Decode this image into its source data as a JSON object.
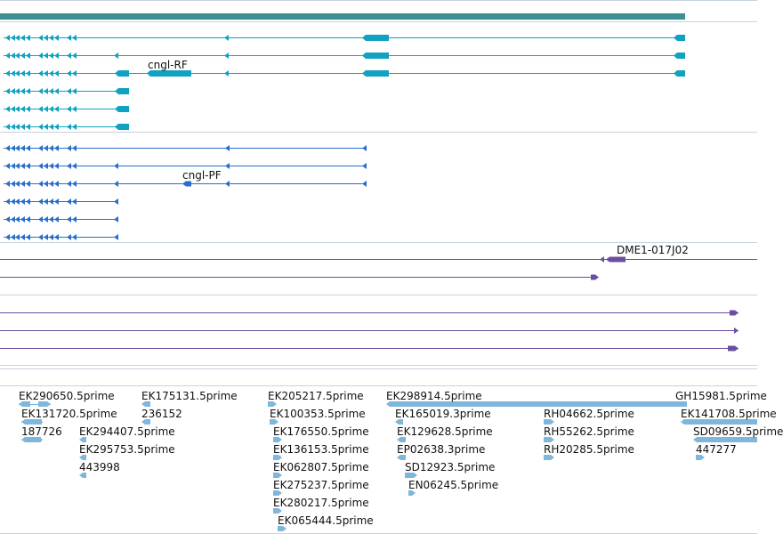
{
  "colors": {
    "gene_bar": "#3b8f95",
    "mrna_rf": "#10a2c0",
    "mrna_pf": "#2a6fc7",
    "dme_track": "#6a4fa0",
    "est": "#7fb6dc",
    "divider": "#c8d3dc",
    "text": "#111111"
  },
  "tracks": {
    "transcripts_rf": {
      "label": "cngl-RF"
    },
    "transcripts_pf": {
      "label": "cngl-PF"
    },
    "dme": {
      "label": "DME1-017J02"
    }
  },
  "est_features": [
    {
      "name": "EK290650.5prime"
    },
    {
      "name": "EK131720.5prime"
    },
    {
      "name": "187726"
    },
    {
      "name": "EK175131.5prime"
    },
    {
      "name": "236152"
    },
    {
      "name": "EK294407.5prime"
    },
    {
      "name": "EK295753.5prime"
    },
    {
      "name": "443998"
    },
    {
      "name": "EK205217.5prime"
    },
    {
      "name": "EK100353.5prime"
    },
    {
      "name": "EK176550.5prime"
    },
    {
      "name": "EK136153.5prime"
    },
    {
      "name": "EK062807.5prime"
    },
    {
      "name": "EK275237.5prime"
    },
    {
      "name": "EK280217.5prime"
    },
    {
      "name": "EK065444.5prime"
    },
    {
      "name": "EK298914.5prime"
    },
    {
      "name": "EK165019.3prime"
    },
    {
      "name": "EK129628.5prime"
    },
    {
      "name": "EP02638.3prime"
    },
    {
      "name": "SD12923.5prime"
    },
    {
      "name": "EN06245.5prime"
    },
    {
      "name": "RH04662.5prime"
    },
    {
      "name": "RH55262.5prime"
    },
    {
      "name": "RH20285.5prime"
    },
    {
      "name": "GH15981.5prime"
    },
    {
      "name": "EK141708.5prime"
    },
    {
      "name": "SD09659.5prime"
    },
    {
      "name": "447277"
    }
  ]
}
